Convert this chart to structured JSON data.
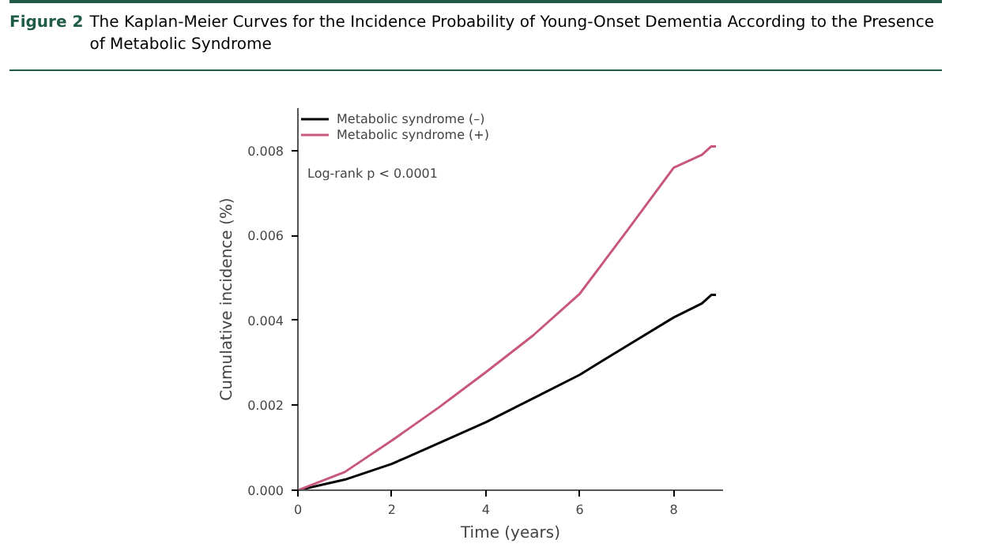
{
  "chart_data": {
    "type": "line",
    "title": "The Kaplan-Meier Curves for the Incidence Probability of Young-Onset Dementia According to the Presence of Metabolic Syndrome",
    "annotations": [
      "Figure 2",
      "Log-rank p < 0.0001"
    ],
    "xlabel": "Time (years)",
    "ylabel": "Cumulative incidence (%)",
    "x": [
      0,
      1,
      2,
      3,
      4,
      5,
      6,
      7,
      8,
      8.6,
      8.8,
      8.9
    ],
    "series": [
      {
        "name": "Metabolic syndrome (–)",
        "color": "#000000",
        "values": [
          0,
          0.00025,
          0.00062,
          0.00111,
          0.0016,
          0.00216,
          0.00272,
          0.0034,
          0.00407,
          0.0044,
          0.0046,
          0.0046
        ]
      },
      {
        "name": "Metabolic syndrome (+)",
        "color": "#c8587a",
        "values": [
          0,
          0.00043,
          0.00117,
          0.00195,
          0.00278,
          0.00364,
          0.00463,
          0.0061,
          0.0076,
          0.0079,
          0.0081,
          0.0081
        ]
      }
    ],
    "xlim": [
      0,
      9.05
    ],
    "ylim": [
      0,
      0.009
    ],
    "xticks": [
      0,
      2,
      4,
      6,
      8
    ],
    "yticks": [
      {
        "value": 0,
        "label": "0.000"
      },
      {
        "value": 0.002,
        "label": "0.002"
      },
      {
        "value": 0.004,
        "label": "0.004"
      },
      {
        "value": 0.006,
        "label": "0.006"
      },
      {
        "value": 0.008,
        "label": "0.008"
      }
    ],
    "legend": "top left",
    "grid": false
  }
}
